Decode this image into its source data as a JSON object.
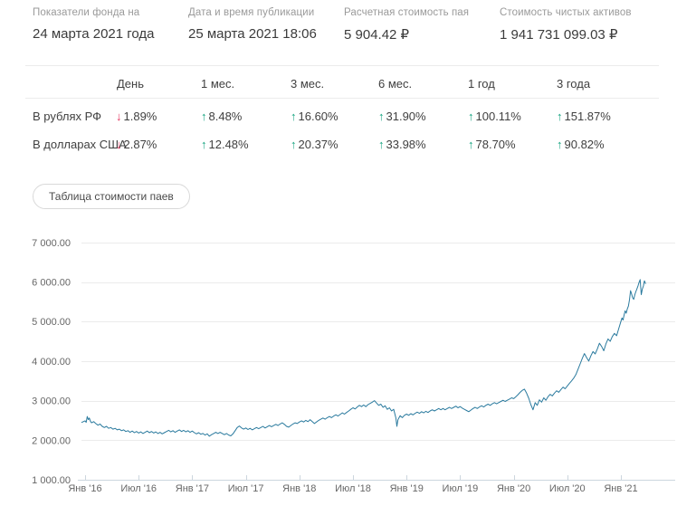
{
  "summary": {
    "items": [
      {
        "label": "Показатели фонда на",
        "value": "24 марта 2021 года"
      },
      {
        "label": "Дата и время публикации",
        "value": "25 марта 2021 18:06"
      },
      {
        "label": "Расчетная стоимость пая",
        "value": "5 904.42 ₽"
      },
      {
        "label": "Стоимость чистых активов",
        "value": "1 941 731 099.03 ₽"
      }
    ]
  },
  "performance_table": {
    "columns": [
      "День",
      "1 мес.",
      "3 мес.",
      "6 мес.",
      "1 год",
      "3 года"
    ],
    "rows": [
      {
        "label": "В рублях РФ",
        "values": [
          {
            "direction": "down",
            "text": "1.89%"
          },
          {
            "direction": "up",
            "text": "8.48%"
          },
          {
            "direction": "up",
            "text": "16.60%"
          },
          {
            "direction": "up",
            "text": "31.90%"
          },
          {
            "direction": "up",
            "text": "100.11%"
          },
          {
            "direction": "up",
            "text": "151.87%"
          }
        ]
      },
      {
        "label": "В долларах США",
        "values": [
          {
            "direction": "down",
            "text": "2.87%"
          },
          {
            "direction": "up",
            "text": "12.48%"
          },
          {
            "direction": "up",
            "text": "20.37%"
          },
          {
            "direction": "up",
            "text": "33.98%"
          },
          {
            "direction": "up",
            "text": "78.70%"
          },
          {
            "direction": "up",
            "text": "90.82%"
          }
        ]
      }
    ]
  },
  "actions": {
    "table_button_label": "Таблица стоимости паев"
  },
  "colors": {
    "up": "#12a37e",
    "down": "#e4355f",
    "line": "#2a7a9e",
    "grid": "#ebebeb",
    "axis": "#ccd6de",
    "axis_label": "#666666"
  },
  "chart_data": {
    "type": "line",
    "title": "",
    "xlabel": "",
    "ylabel": "",
    "grid": true,
    "legend": "none",
    "xlim": [
      2015.95,
      2021.55
    ],
    "ylim": [
      1000,
      7000
    ],
    "x_axis": {
      "tick_years": [
        2016.0,
        2016.5,
        2017.0,
        2017.5,
        2018.0,
        2018.5,
        2019.0,
        2019.5,
        2020.0,
        2020.5,
        2021.0
      ],
      "tick_labels": [
        "Янв '16",
        "Июл '16",
        "Янв '17",
        "Июл '17",
        "Янв '18",
        "Июл '18",
        "Янв '19",
        "Июл '19",
        "Янв '20",
        "Июл '20",
        "Янв '21"
      ]
    },
    "y_axis": {
      "tick_values": [
        1000,
        2000,
        3000,
        4000,
        5000,
        6000,
        7000
      ],
      "tick_labels": [
        "1 000.00",
        "2 000.00",
        "3 000.00",
        "4 000.00",
        "5 000.00",
        "6 000.00",
        "7 000.00"
      ]
    },
    "points": [
      [
        2015.97,
        2450
      ],
      [
        2016.0,
        2490
      ],
      [
        2016.01,
        2450
      ],
      [
        2016.02,
        2600
      ],
      [
        2016.03,
        2520
      ],
      [
        2016.04,
        2560
      ],
      [
        2016.05,
        2480
      ],
      [
        2016.06,
        2440
      ],
      [
        2016.08,
        2470
      ],
      [
        2016.1,
        2420
      ],
      [
        2016.12,
        2380
      ],
      [
        2016.14,
        2410
      ],
      [
        2016.16,
        2350
      ],
      [
        2016.18,
        2320
      ],
      [
        2016.2,
        2350
      ],
      [
        2016.22,
        2300
      ],
      [
        2016.24,
        2320
      ],
      [
        2016.26,
        2280
      ],
      [
        2016.28,
        2300
      ],
      [
        2016.3,
        2260
      ],
      [
        2016.32,
        2280
      ],
      [
        2016.34,
        2240
      ],
      [
        2016.36,
        2260
      ],
      [
        2016.38,
        2220
      ],
      [
        2016.4,
        2240
      ],
      [
        2016.42,
        2200
      ],
      [
        2016.44,
        2230
      ],
      [
        2016.46,
        2190
      ],
      [
        2016.48,
        2220
      ],
      [
        2016.5,
        2180
      ],
      [
        2016.52,
        2210
      ],
      [
        2016.54,
        2170
      ],
      [
        2016.56,
        2200
      ],
      [
        2016.58,
        2230
      ],
      [
        2016.6,
        2190
      ],
      [
        2016.62,
        2220
      ],
      [
        2016.64,
        2180
      ],
      [
        2016.66,
        2210
      ],
      [
        2016.68,
        2170
      ],
      [
        2016.7,
        2200
      ],
      [
        2016.72,
        2160
      ],
      [
        2016.74,
        2190
      ],
      [
        2016.76,
        2220
      ],
      [
        2016.78,
        2250
      ],
      [
        2016.8,
        2210
      ],
      [
        2016.82,
        2240
      ],
      [
        2016.84,
        2200
      ],
      [
        2016.86,
        2230
      ],
      [
        2016.88,
        2260
      ],
      [
        2016.9,
        2220
      ],
      [
        2016.92,
        2250
      ],
      [
        2016.94,
        2210
      ],
      [
        2016.96,
        2240
      ],
      [
        2016.98,
        2200
      ],
      [
        2017.0,
        2230
      ],
      [
        2017.02,
        2190
      ],
      [
        2017.04,
        2160
      ],
      [
        2017.06,
        2190
      ],
      [
        2017.08,
        2150
      ],
      [
        2017.1,
        2170
      ],
      [
        2017.12,
        2130
      ],
      [
        2017.14,
        2160
      ],
      [
        2017.16,
        2100
      ],
      [
        2017.18,
        2140
      ],
      [
        2017.2,
        2170
      ],
      [
        2017.22,
        2200
      ],
      [
        2017.24,
        2170
      ],
      [
        2017.26,
        2200
      ],
      [
        2017.28,
        2170
      ],
      [
        2017.3,
        2140
      ],
      [
        2017.32,
        2170
      ],
      [
        2017.34,
        2130
      ],
      [
        2017.36,
        2110
      ],
      [
        2017.38,
        2160
      ],
      [
        2017.4,
        2240
      ],
      [
        2017.42,
        2320
      ],
      [
        2017.44,
        2360
      ],
      [
        2017.46,
        2310
      ],
      [
        2017.48,
        2280
      ],
      [
        2017.5,
        2310
      ],
      [
        2017.52,
        2270
      ],
      [
        2017.54,
        2300
      ],
      [
        2017.56,
        2260
      ],
      [
        2017.58,
        2290
      ],
      [
        2017.6,
        2320
      ],
      [
        2017.62,
        2290
      ],
      [
        2017.64,
        2320
      ],
      [
        2017.66,
        2350
      ],
      [
        2017.68,
        2310
      ],
      [
        2017.7,
        2340
      ],
      [
        2017.72,
        2370
      ],
      [
        2017.74,
        2340
      ],
      [
        2017.76,
        2370
      ],
      [
        2017.78,
        2400
      ],
      [
        2017.8,
        2370
      ],
      [
        2017.82,
        2410
      ],
      [
        2017.84,
        2440
      ],
      [
        2017.86,
        2400
      ],
      [
        2017.88,
        2350
      ],
      [
        2017.9,
        2330
      ],
      [
        2017.92,
        2370
      ],
      [
        2017.94,
        2410
      ],
      [
        2017.96,
        2440
      ],
      [
        2017.98,
        2420
      ],
      [
        2018.0,
        2460
      ],
      [
        2018.02,
        2490
      ],
      [
        2018.04,
        2460
      ],
      [
        2018.06,
        2500
      ],
      [
        2018.08,
        2470
      ],
      [
        2018.1,
        2520
      ],
      [
        2018.12,
        2470
      ],
      [
        2018.14,
        2420
      ],
      [
        2018.16,
        2460
      ],
      [
        2018.18,
        2500
      ],
      [
        2018.2,
        2530
      ],
      [
        2018.22,
        2560
      ],
      [
        2018.24,
        2530
      ],
      [
        2018.26,
        2570
      ],
      [
        2018.28,
        2600
      ],
      [
        2018.3,
        2570
      ],
      [
        2018.32,
        2610
      ],
      [
        2018.34,
        2640
      ],
      [
        2018.36,
        2610
      ],
      [
        2018.38,
        2650
      ],
      [
        2018.4,
        2690
      ],
      [
        2018.42,
        2660
      ],
      [
        2018.44,
        2700
      ],
      [
        2018.46,
        2740
      ],
      [
        2018.48,
        2780
      ],
      [
        2018.5,
        2820
      ],
      [
        2018.52,
        2790
      ],
      [
        2018.54,
        2840
      ],
      [
        2018.56,
        2880
      ],
      [
        2018.58,
        2850
      ],
      [
        2018.6,
        2890
      ],
      [
        2018.62,
        2850
      ],
      [
        2018.64,
        2900
      ],
      [
        2018.66,
        2930
      ],
      [
        2018.68,
        2960
      ],
      [
        2018.7,
        3000
      ],
      [
        2018.72,
        2940
      ],
      [
        2018.74,
        2880
      ],
      [
        2018.76,
        2910
      ],
      [
        2018.78,
        2830
      ],
      [
        2018.8,
        2870
      ],
      [
        2018.82,
        2780
      ],
      [
        2018.84,
        2820
      ],
      [
        2018.86,
        2740
      ],
      [
        2018.88,
        2780
      ],
      [
        2018.9,
        2560
      ],
      [
        2018.91,
        2350
      ],
      [
        2018.92,
        2520
      ],
      [
        2018.94,
        2620
      ],
      [
        2018.96,
        2570
      ],
      [
        2018.98,
        2630
      ],
      [
        2019.0,
        2660
      ],
      [
        2019.02,
        2630
      ],
      [
        2019.04,
        2670
      ],
      [
        2019.06,
        2640
      ],
      [
        2019.08,
        2680
      ],
      [
        2019.1,
        2710
      ],
      [
        2019.12,
        2680
      ],
      [
        2019.14,
        2720
      ],
      [
        2019.16,
        2690
      ],
      [
        2019.18,
        2730
      ],
      [
        2019.2,
        2700
      ],
      [
        2019.22,
        2740
      ],
      [
        2019.24,
        2770
      ],
      [
        2019.26,
        2740
      ],
      [
        2019.28,
        2770
      ],
      [
        2019.3,
        2800
      ],
      [
        2019.32,
        2770
      ],
      [
        2019.34,
        2800
      ],
      [
        2019.36,
        2770
      ],
      [
        2019.38,
        2800
      ],
      [
        2019.4,
        2830
      ],
      [
        2019.42,
        2800
      ],
      [
        2019.44,
        2830
      ],
      [
        2019.46,
        2860
      ],
      [
        2019.48,
        2820
      ],
      [
        2019.5,
        2850
      ],
      [
        2019.52,
        2810
      ],
      [
        2019.54,
        2780
      ],
      [
        2019.56,
        2750
      ],
      [
        2019.58,
        2720
      ],
      [
        2019.6,
        2760
      ],
      [
        2019.62,
        2800
      ],
      [
        2019.64,
        2830
      ],
      [
        2019.66,
        2800
      ],
      [
        2019.68,
        2840
      ],
      [
        2019.7,
        2870
      ],
      [
        2019.72,
        2840
      ],
      [
        2019.74,
        2880
      ],
      [
        2019.76,
        2910
      ],
      [
        2019.78,
        2880
      ],
      [
        2019.8,
        2920
      ],
      [
        2019.82,
        2950
      ],
      [
        2019.84,
        2920
      ],
      [
        2019.86,
        2950
      ],
      [
        2019.88,
        2980
      ],
      [
        2019.9,
        3010
      ],
      [
        2019.92,
        2980
      ],
      [
        2019.94,
        3010
      ],
      [
        2019.96,
        3040
      ],
      [
        2019.98,
        3070
      ],
      [
        2020.0,
        3050
      ],
      [
        2020.02,
        3100
      ],
      [
        2020.04,
        3150
      ],
      [
        2020.06,
        3210
      ],
      [
        2020.08,
        3260
      ],
      [
        2020.1,
        3290
      ],
      [
        2020.12,
        3190
      ],
      [
        2020.14,
        3060
      ],
      [
        2020.16,
        2900
      ],
      [
        2020.18,
        2770
      ],
      [
        2020.2,
        2950
      ],
      [
        2020.22,
        2880
      ],
      [
        2020.24,
        3020
      ],
      [
        2020.26,
        2960
      ],
      [
        2020.28,
        3070
      ],
      [
        2020.3,
        3010
      ],
      [
        2020.32,
        3100
      ],
      [
        2020.34,
        3160
      ],
      [
        2020.36,
        3120
      ],
      [
        2020.38,
        3190
      ],
      [
        2020.4,
        3250
      ],
      [
        2020.42,
        3210
      ],
      [
        2020.44,
        3280
      ],
      [
        2020.46,
        3340
      ],
      [
        2020.48,
        3300
      ],
      [
        2020.5,
        3370
      ],
      [
        2020.52,
        3440
      ],
      [
        2020.54,
        3500
      ],
      [
        2020.56,
        3570
      ],
      [
        2020.58,
        3660
      ],
      [
        2020.6,
        3790
      ],
      [
        2020.62,
        3930
      ],
      [
        2020.64,
        4070
      ],
      [
        2020.66,
        4190
      ],
      [
        2020.68,
        4090
      ],
      [
        2020.7,
        4000
      ],
      [
        2020.72,
        4130
      ],
      [
        2020.74,
        4240
      ],
      [
        2020.76,
        4180
      ],
      [
        2020.78,
        4310
      ],
      [
        2020.8,
        4450
      ],
      [
        2020.82,
        4370
      ],
      [
        2020.84,
        4260
      ],
      [
        2020.86,
        4430
      ],
      [
        2020.88,
        4560
      ],
      [
        2020.9,
        4500
      ],
      [
        2020.92,
        4620
      ],
      [
        2020.94,
        4700
      ],
      [
        2020.96,
        4640
      ],
      [
        2020.98,
        4820
      ],
      [
        2021.0,
        5000
      ],
      [
        2021.01,
        5090
      ],
      [
        2021.02,
        5040
      ],
      [
        2021.03,
        5170
      ],
      [
        2021.04,
        5270
      ],
      [
        2021.05,
        5210
      ],
      [
        2021.06,
        5320
      ],
      [
        2021.07,
        5390
      ],
      [
        2021.08,
        5550
      ],
      [
        2021.09,
        5780
      ],
      [
        2021.1,
        5700
      ],
      [
        2021.11,
        5600
      ],
      [
        2021.12,
        5560
      ],
      [
        2021.13,
        5680
      ],
      [
        2021.14,
        5760
      ],
      [
        2021.15,
        5830
      ],
      [
        2021.16,
        5900
      ],
      [
        2021.17,
        5990
      ],
      [
        2021.18,
        6060
      ],
      [
        2021.19,
        5680
      ],
      [
        2021.2,
        5820
      ],
      [
        2021.21,
        5900
      ],
      [
        2021.22,
        6030
      ],
      [
        2021.23,
        5960
      ]
    ]
  }
}
